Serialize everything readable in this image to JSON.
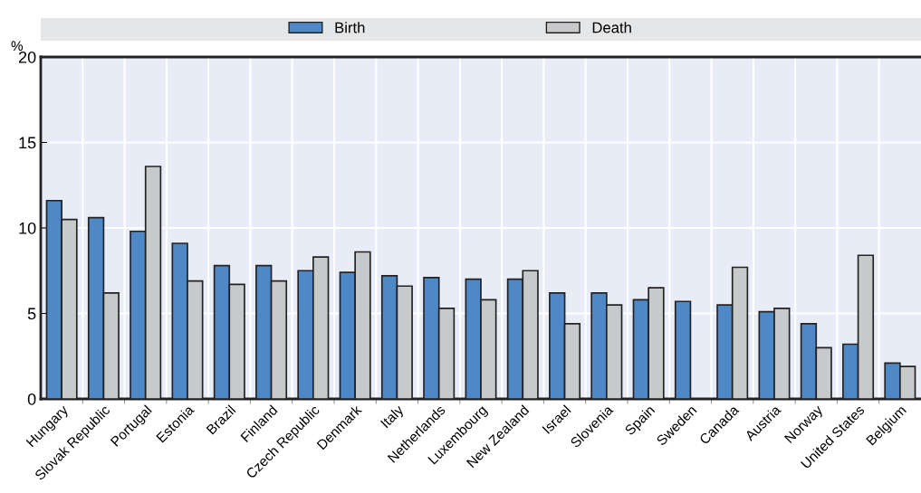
{
  "chart_data": {
    "type": "bar",
    "ylabel": "%",
    "categories": [
      "Hungary",
      "Slovak Republic",
      "Portugal",
      "Estonia",
      "Brazil",
      "Finland",
      "Czech Republic",
      "Denmark",
      "Italy",
      "Netherlands",
      "Luxembourg",
      "New Zealand",
      "Israel",
      "Slovenia",
      "Spain",
      "Sweden",
      "Canada",
      "Austria",
      "Norway",
      "United States",
      "Belgium"
    ],
    "series": [
      {
        "name": "Birth",
        "color": "#4e88c7",
        "values": [
          11.6,
          10.6,
          9.8,
          9.1,
          7.8,
          7.8,
          7.5,
          7.4,
          7.2,
          7.1,
          7.0,
          7.0,
          6.2,
          6.2,
          5.8,
          5.7,
          5.5,
          5.1,
          4.4,
          3.2,
          2.1
        ]
      },
      {
        "name": "Death",
        "color": "#c8c9cb",
        "values": [
          10.5,
          6.2,
          13.6,
          6.9,
          6.7,
          6.9,
          8.3,
          8.6,
          6.6,
          5.3,
          5.8,
          7.5,
          4.4,
          5.5,
          6.5,
          null,
          7.7,
          5.3,
          3.0,
          8.4,
          1.9
        ]
      }
    ],
    "ylim": [
      0,
      20
    ],
    "yticks": [
      0,
      5,
      10,
      15,
      20
    ],
    "grid": true,
    "legend": "top"
  }
}
